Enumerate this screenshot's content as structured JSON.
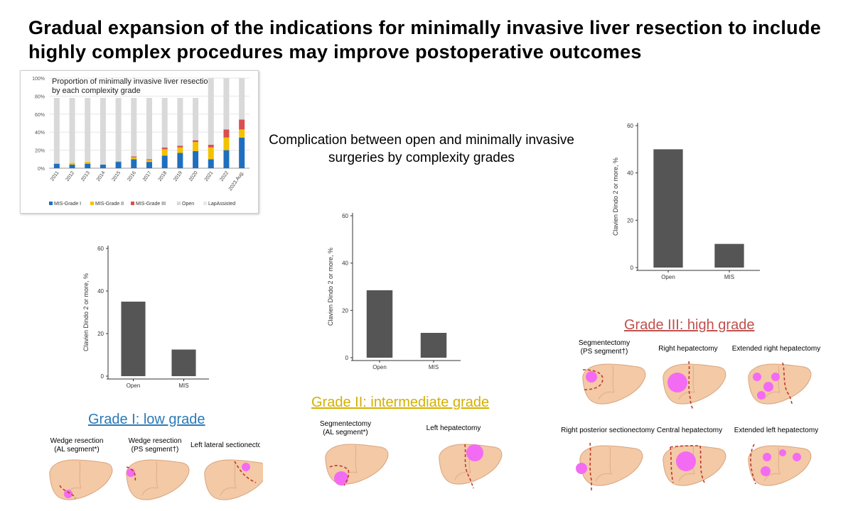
{
  "title": "Gradual expansion of the indications for minimally invasive liver resection to include highly complex procedures may improve postoperative outcomes",
  "comparison_title": "Complication between open and minimally invasive surgeries by complexity grades",
  "colors": {
    "mis_grade_1": "#1f6fbf",
    "mis_grade_2": "#f2c200",
    "mis_grade_3": "#d94f4f",
    "open": "#d9d9d9",
    "lap_assisted": "#e8e8e8",
    "complication_bar": "#555555",
    "grade1_heading": "#2a7ab8",
    "grade2_heading": "#d4b000",
    "grade3_heading": "#c0504d",
    "liver": "#f3c9a6",
    "tumor": "#f36bf3",
    "cut_line": "#c0392b"
  },
  "grades": {
    "grade1": {
      "heading": "Grade I: low grade",
      "procedures": [
        {
          "line1": "Wedge resection",
          "line2": "(AL segment*)"
        },
        {
          "line1": "Wedge resection",
          "line2": "(PS segment†)"
        },
        {
          "line1": "Left lateral sectionectomy",
          "line2": ""
        }
      ]
    },
    "grade2": {
      "heading": "Grade II: intermediate grade",
      "procedures": [
        {
          "line1": "Segmentectomy",
          "line2": "(AL segment*)"
        },
        {
          "line1": "Left hepatectomy",
          "line2": ""
        }
      ]
    },
    "grade3": {
      "heading": "Grade III: high grade",
      "procedures": [
        {
          "line1": "Segmentectomy",
          "line2": "(PS segment†)"
        },
        {
          "line1": "Right hepatectomy",
          "line2": ""
        },
        {
          "line1": "Extended right hepatectomy",
          "line2": ""
        },
        {
          "line1": "Right posterior sectionectomy",
          "line2": ""
        },
        {
          "line1": "Central hepatectomy",
          "line2": ""
        },
        {
          "line1": "Extended left hepatectomy",
          "line2": ""
        }
      ]
    }
  },
  "chart_data": [
    {
      "type": "bar",
      "stacked": true,
      "title": "Proportion of minimally invasive liver resection by each complexity grade",
      "categories": [
        "2011",
        "2012",
        "2013",
        "2014",
        "2015",
        "2016",
        "2017",
        "2018",
        "2019",
        "2020",
        "2021",
        "2022",
        "2023.Aug."
      ],
      "yticks": [
        "0%",
        "20%",
        "40%",
        "60%",
        "80%",
        "100%"
      ],
      "ylim": [
        0,
        100
      ],
      "series": [
        {
          "name": "MIS-Grade I",
          "values": [
            5,
            4,
            5,
            4,
            7,
            10,
            7,
            14,
            17,
            19,
            10,
            20,
            34
          ]
        },
        {
          "name": "MIS-Grade II",
          "values": [
            0,
            2,
            2,
            0,
            1,
            2,
            2,
            7,
            6,
            10,
            13,
            14,
            9
          ]
        },
        {
          "name": "MIS-Grade III",
          "values": [
            0,
            0,
            0,
            0,
            0,
            1,
            1,
            2,
            2,
            2,
            3,
            9,
            11
          ]
        },
        {
          "name": "Open",
          "values": [
            73,
            72,
            71,
            74,
            70,
            65,
            68,
            55,
            53,
            47,
            74,
            57,
            46
          ]
        },
        {
          "name": "LapAssisted",
          "values": [
            0,
            0,
            0,
            0,
            0,
            0,
            0,
            0,
            0,
            0,
            0,
            0,
            0
          ]
        }
      ],
      "legend": "bottom"
    },
    {
      "type": "bar",
      "title": "Grade I",
      "categories": [
        "Open",
        "MIS"
      ],
      "values": [
        35,
        12.5
      ],
      "ylabel": "Clavien Dindo 2 or more, %",
      "yticks": [
        "0",
        "20",
        "40",
        "60"
      ],
      "ylim": [
        0,
        60
      ]
    },
    {
      "type": "bar",
      "title": "Grade II",
      "categories": [
        "Open",
        "MIS"
      ],
      "values": [
        28.5,
        10.5
      ],
      "ylabel": "Clavien Dindo 2 or more, %",
      "yticks": [
        "0",
        "20",
        "40",
        "60"
      ],
      "ylim": [
        0,
        60
      ]
    },
    {
      "type": "bar",
      "title": "Grade III",
      "categories": [
        "Open",
        "MIS"
      ],
      "values": [
        50,
        10
      ],
      "ylabel": "Clavien Dindo 2 or more, %",
      "yticks": [
        "0",
        "20",
        "40",
        "60"
      ],
      "ylim": [
        0,
        60
      ]
    }
  ]
}
